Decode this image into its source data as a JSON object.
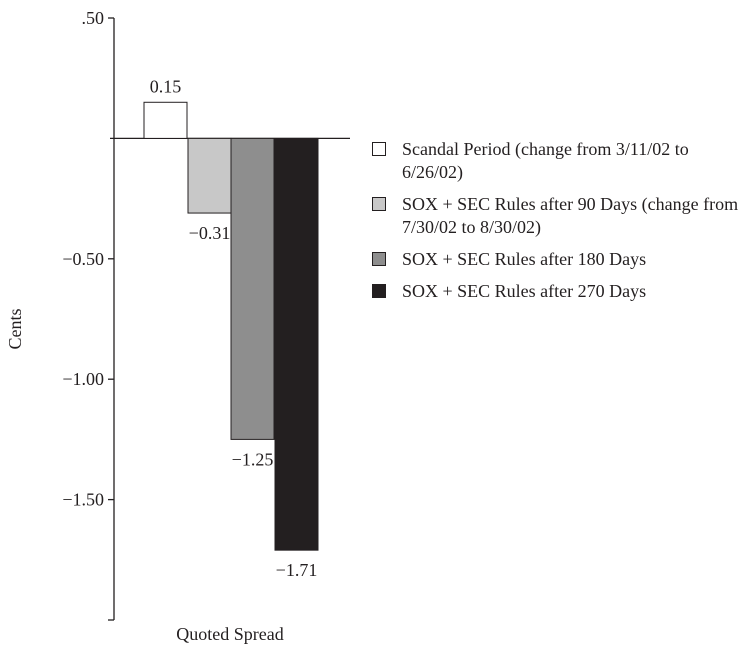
{
  "chart_data": {
    "type": "bar",
    "xlabel": "Quoted Spread",
    "ylabel": "Cents",
    "ylim": [
      -2.0,
      0.5
    ],
    "y_ticks": [
      0.5,
      -0.5,
      -1.0,
      -1.5
    ],
    "y_tick_labels": [
      ".50",
      "−0.50",
      "−1.00",
      "−1.50"
    ],
    "series": [
      {
        "name": "Scandal Period (change from 3/11/02 to 6/26/02)",
        "value": 0.15,
        "label": "0.15",
        "color": "#ffffff"
      },
      {
        "name": "SOX + SEC Rules after 90 Days (change from 7/30/02 to 8/30/02)",
        "value": -0.31,
        "label": "−0.31",
        "color": "#c8c8c8"
      },
      {
        "name": "SOX + SEC Rules after 180 Days",
        "value": -1.25,
        "label": "−1.25",
        "color": "#8e8e8e"
      },
      {
        "name": "SOX + SEC Rules after 270 Days",
        "value": -1.71,
        "label": "−1.71",
        "color": "#231f20"
      }
    ],
    "legend_position": "right",
    "grid": false
  }
}
